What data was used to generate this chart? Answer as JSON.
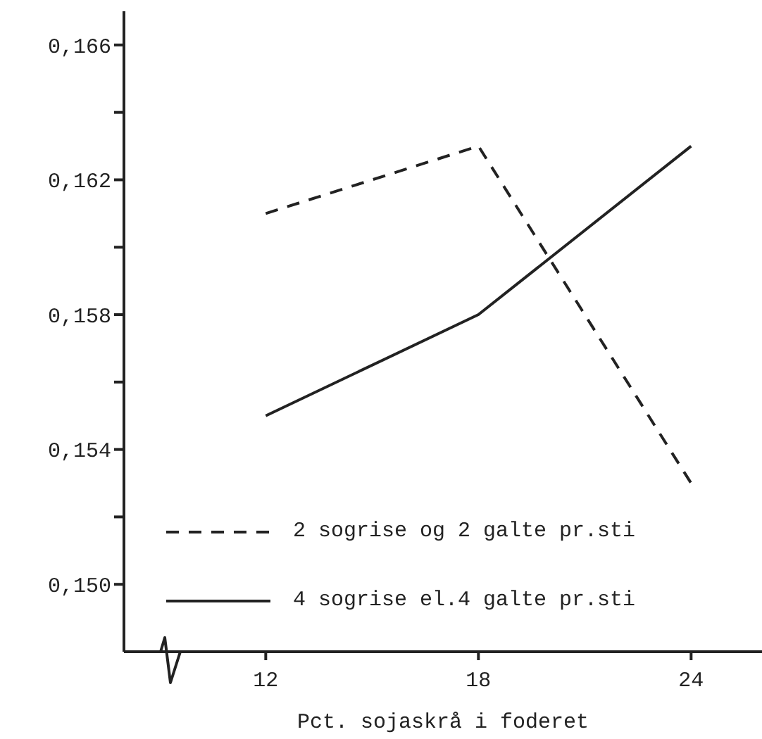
{
  "chart_data": {
    "type": "line",
    "xlabel": "Pct. sojaskrå i foderet",
    "x": [
      12,
      18,
      24
    ],
    "series": [
      {
        "name": "2 sogrise og 2 galte pr.sti",
        "color": "#222222",
        "values": [
          0.161,
          0.163,
          0.153
        ],
        "line_style": "dashed"
      },
      {
        "name": "4 sogrise el.4 galte pr.sti",
        "color": "#222222",
        "values": [
          0.155,
          0.158,
          0.163
        ],
        "line_style": "solid"
      }
    ],
    "xlim": [
      8,
      26
    ],
    "xticks": [
      12,
      18,
      24
    ],
    "ylim": [
      0.148,
      0.167
    ],
    "yticks": [
      {
        "value": 0.15,
        "label": "0,150"
      },
      {
        "value": 0.152,
        "label": null
      },
      {
        "value": 0.154,
        "label": "0,154"
      },
      {
        "value": 0.156,
        "label": null
      },
      {
        "value": 0.158,
        "label": "0,158"
      },
      {
        "value": 0.16,
        "label": null
      },
      {
        "value": 0.162,
        "label": "0,162"
      },
      {
        "value": 0.164,
        "label": null
      },
      {
        "value": 0.166,
        "label": "0,166"
      }
    ],
    "grid": false,
    "marker": "none",
    "legend": "bottom"
  }
}
